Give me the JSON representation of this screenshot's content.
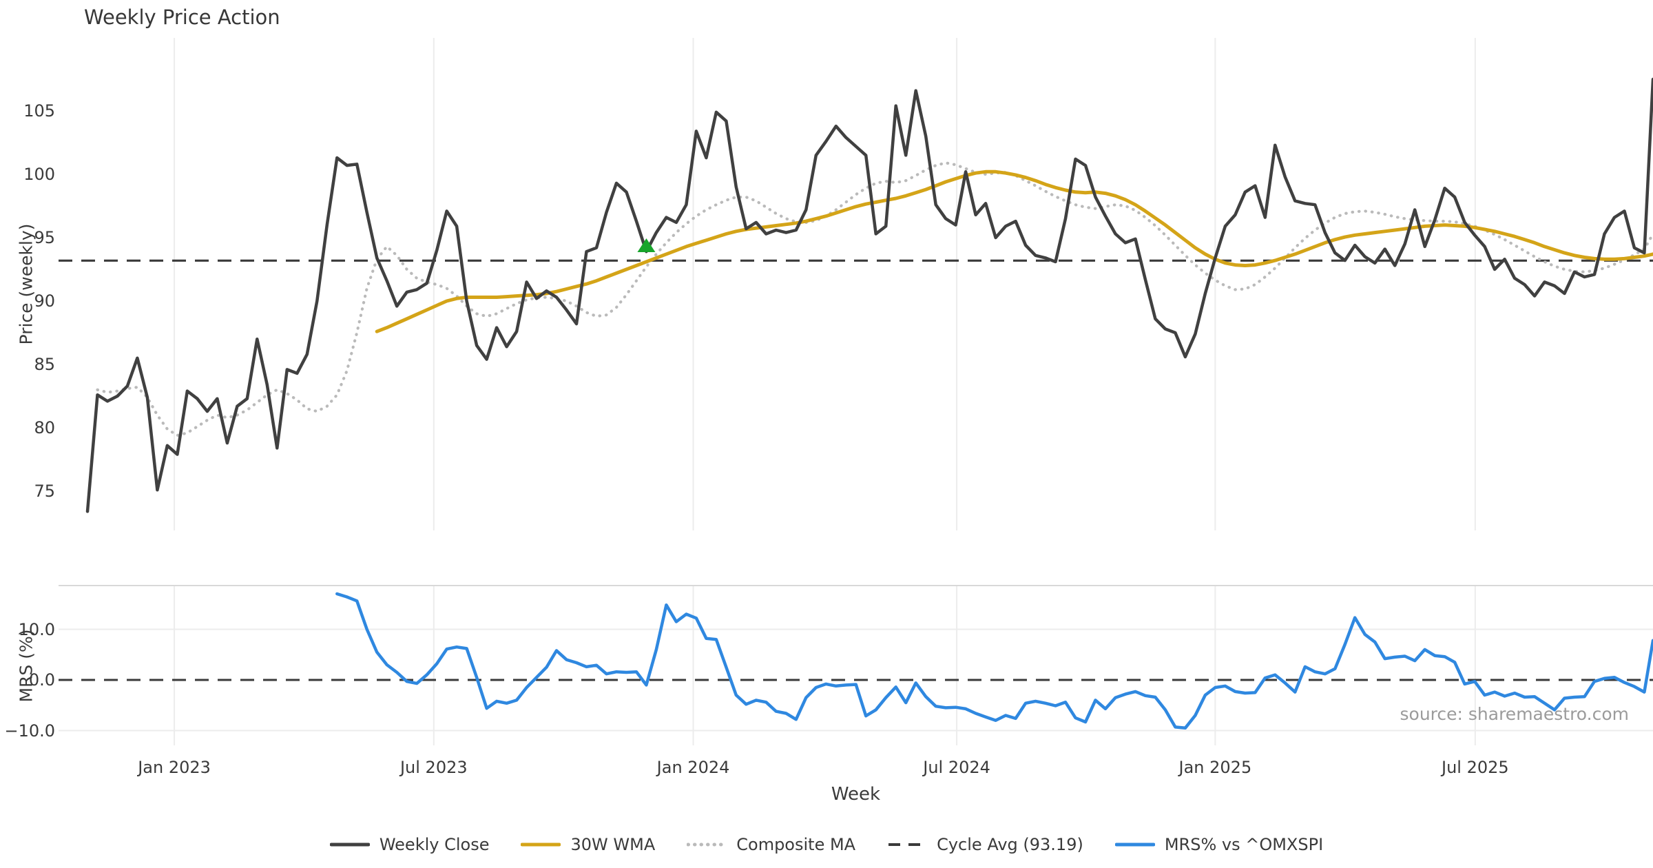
{
  "title": "Weekly Price Action",
  "source_note": "source: sharemaestro.com",
  "colors": {
    "close": "#404040",
    "wma": "#d4a418",
    "composite": "#bababa",
    "cycle": "#3a3a3a",
    "mrs": "#2f88e0",
    "marker": "#18a52c",
    "grid": "#ececec",
    "panel_border": "#d8d8d8",
    "text": "#3a3a3a",
    "muted": "#9b9b9b"
  },
  "axis": {
    "xlabel": "Week",
    "x_ticks": [
      {
        "label": "Jan 2023",
        "week": 8.7
      },
      {
        "label": "Jul 2023",
        "week": 34.7
      },
      {
        "label": "Jan 2024",
        "week": 60.7
      },
      {
        "label": "Jul 2024",
        "week": 87.1
      },
      {
        "label": "Jan 2025",
        "week": 113.0
      },
      {
        "label": "Jul 2025",
        "week": 139.05
      }
    ],
    "price_ylabel": "Price (weekly)",
    "price_yticks": [
      {
        "label": "105",
        "v": 105
      },
      {
        "label": "100",
        "v": 100
      },
      {
        "label": "95",
        "v": 95
      },
      {
        "label": "90",
        "v": 90
      },
      {
        "label": "85",
        "v": 85
      },
      {
        "label": "80",
        "v": 80
      },
      {
        "label": "75",
        "v": 75
      }
    ],
    "mrs_ylabel": "MRS (%)",
    "mrs_yticks": [
      {
        "label": "10.0",
        "v": 10
      },
      {
        "label": "0.0",
        "v": 0
      },
      {
        "label": "−10.0",
        "v": -10
      }
    ]
  },
  "legend": [
    {
      "label": "Weekly Close",
      "color": "#404040",
      "style": "solid"
    },
    {
      "label": "30W WMA",
      "color": "#d4a418",
      "style": "solid"
    },
    {
      "label": "Composite MA",
      "color": "#bababa",
      "style": "dotted"
    },
    {
      "label": "Cycle Avg (93.19)",
      "color": "#3a3a3a",
      "style": "dashed"
    },
    {
      "label": "MRS% vs ^OMXSPI",
      "color": "#2f88e0",
      "style": "solid"
    }
  ],
  "chart_data": [
    {
      "type": "line",
      "panel": "price",
      "title": "Weekly Price Action",
      "ylabel": "Price (weekly)",
      "ylim": [
        71.9,
        110.8
      ],
      "grid": "vertical-only",
      "cycle_avg": 93.19,
      "marker": {
        "shape": "triangle-up",
        "week": 56,
        "value": 94.35,
        "color": "#18a52c"
      },
      "series": [
        {
          "name": "Weekly Close",
          "start_week": 0,
          "values": [
            73.4,
            82.6,
            82.1,
            82.5,
            83.3,
            85.5,
            82.4,
            75.1,
            78.6,
            77.9,
            82.9,
            82.3,
            81.3,
            82.3,
            78.8,
            81.7,
            82.3,
            87.0,
            83.4,
            78.4,
            84.6,
            84.3,
            85.8,
            90.0,
            96.0,
            101.3,
            100.7,
            100.8,
            97.0,
            93.4,
            91.6,
            89.6,
            90.7,
            90.9,
            91.4,
            94.0,
            97.1,
            95.9,
            90.0,
            86.5,
            85.4,
            87.9,
            86.4,
            87.6,
            91.5,
            90.2,
            90.8,
            90.3,
            89.3,
            88.2,
            93.9,
            94.2,
            97.0,
            99.3,
            98.6,
            96.3,
            93.9,
            95.4,
            96.6,
            96.2,
            97.6,
            103.4,
            101.3,
            104.9,
            104.2,
            99.0,
            95.7,
            96.2,
            95.3,
            95.6,
            95.4,
            95.6,
            97.2,
            101.5,
            102.6,
            103.8,
            102.9,
            102.2,
            101.5,
            95.3,
            95.9,
            105.4,
            101.5,
            106.6,
            103.0,
            97.6,
            96.5,
            96.0,
            100.2,
            96.8,
            97.7,
            95.0,
            95.9,
            96.3,
            94.4,
            93.6,
            93.4,
            93.1,
            96.5,
            101.2,
            100.7,
            98.2,
            96.7,
            95.3,
            94.6,
            94.9,
            91.7,
            88.6,
            87.8,
            87.5,
            85.6,
            87.4,
            90.6,
            93.4,
            95.9,
            96.8,
            98.6,
            99.1,
            96.6,
            102.3,
            99.8,
            97.9,
            97.7,
            97.6,
            95.4,
            93.8,
            93.2,
            94.4,
            93.5,
            93.0,
            94.1,
            92.8,
            94.5,
            97.2,
            94.3,
            96.4,
            98.9,
            98.2,
            96.2,
            95.2,
            94.3,
            92.5,
            93.3,
            91.8,
            91.3,
            90.4,
            91.5,
            91.2,
            90.6,
            92.3,
            91.9,
            92.1,
            95.3,
            96.6,
            97.1,
            94.2,
            93.8,
            107.5
          ]
        },
        {
          "name": "30W WMA",
          "start_week": 29,
          "values": [
            87.6,
            87.9,
            88.25,
            88.6,
            88.95,
            89.3,
            89.65,
            90.0,
            90.2,
            90.3,
            90.3,
            90.3,
            90.3,
            90.35,
            90.4,
            90.45,
            90.5,
            90.6,
            90.75,
            90.95,
            91.15,
            91.35,
            91.6,
            91.9,
            92.2,
            92.5,
            92.8,
            93.1,
            93.4,
            93.7,
            94.0,
            94.3,
            94.55,
            94.8,
            95.05,
            95.3,
            95.5,
            95.65,
            95.75,
            95.85,
            95.95,
            96.05,
            96.15,
            96.3,
            96.5,
            96.7,
            96.95,
            97.2,
            97.45,
            97.65,
            97.8,
            97.95,
            98.1,
            98.3,
            98.55,
            98.8,
            99.1,
            99.4,
            99.65,
            99.9,
            100.1,
            100.2,
            100.2,
            100.1,
            99.95,
            99.75,
            99.5,
            99.2,
            98.95,
            98.75,
            98.6,
            98.55,
            98.6,
            98.5,
            98.3,
            98.0,
            97.6,
            97.1,
            96.55,
            96.0,
            95.4,
            94.8,
            94.2,
            93.7,
            93.3,
            93.0,
            92.85,
            92.8,
            92.85,
            93.0,
            93.2,
            93.45,
            93.7,
            94.0,
            94.3,
            94.6,
            94.85,
            95.05,
            95.2,
            95.3,
            95.4,
            95.5,
            95.6,
            95.7,
            95.8,
            95.9,
            95.95,
            96.0,
            95.95,
            95.9,
            95.8,
            95.65,
            95.5,
            95.3,
            95.1,
            94.85,
            94.6,
            94.3,
            94.05,
            93.8,
            93.6,
            93.45,
            93.35,
            93.3,
            93.3,
            93.35,
            93.45,
            93.55,
            93.7
          ]
        },
        {
          "name": "Composite MA",
          "start_week": 1,
          "values": [
            83.0,
            82.8,
            82.9,
            83.1,
            83.2,
            82.4,
            81.0,
            79.9,
            79.4,
            79.6,
            80.1,
            80.6,
            81.0,
            80.8,
            81.0,
            81.4,
            82.0,
            82.6,
            83.0,
            82.7,
            82.2,
            81.5,
            81.3,
            81.7,
            82.6,
            84.5,
            87.5,
            91.0,
            93.3,
            94.3,
            93.6,
            92.5,
            91.8,
            91.5,
            91.3,
            91.0,
            90.4,
            89.6,
            89.0,
            88.8,
            89.0,
            89.4,
            89.8,
            90.1,
            90.25,
            90.3,
            90.2,
            90.0,
            89.6,
            89.1,
            88.8,
            88.9,
            89.5,
            90.5,
            91.6,
            92.7,
            93.7,
            94.6,
            95.4,
            96.1,
            96.7,
            97.2,
            97.6,
            97.95,
            98.2,
            98.2,
            97.9,
            97.4,
            96.9,
            96.5,
            96.25,
            96.2,
            96.35,
            96.7,
            97.2,
            97.8,
            98.4,
            98.9,
            99.3,
            99.45,
            99.35,
            99.5,
            99.9,
            100.35,
            100.7,
            100.9,
            100.75,
            100.45,
            100.15,
            100.0,
            100.1,
            100.15,
            99.9,
            99.5,
            99.1,
            98.65,
            98.25,
            97.9,
            97.6,
            97.4,
            97.3,
            97.45,
            97.6,
            97.5,
            97.15,
            96.6,
            95.95,
            95.2,
            94.4,
            93.6,
            92.85,
            92.2,
            91.65,
            91.2,
            90.9,
            90.95,
            91.3,
            91.9,
            92.6,
            93.4,
            94.2,
            94.95,
            95.6,
            96.15,
            96.6,
            96.9,
            97.05,
            97.1,
            97.0,
            96.85,
            96.65,
            96.5,
            96.4,
            96.35,
            96.3,
            96.3,
            96.25,
            96.1,
            95.9,
            95.6,
            95.25,
            94.85,
            94.4,
            93.95,
            93.5,
            93.1,
            92.75,
            92.5,
            92.35,
            92.3,
            92.4,
            92.6,
            92.9,
            93.25,
            93.65,
            94.1,
            95.3
          ]
        }
      ]
    },
    {
      "type": "line",
      "panel": "mrs",
      "ylabel": "MRS (%)",
      "ylim": [
        -12.9,
        18.6
      ],
      "zero_line": 0,
      "series": [
        {
          "name": "MRS% vs ^OMXSPI",
          "start_week": 25,
          "values": [
            17.0,
            16.4,
            15.6,
            10.0,
            5.5,
            3.0,
            1.5,
            -0.3,
            -0.7,
            1.0,
            3.2,
            6.1,
            6.5,
            6.2,
            0.5,
            -5.6,
            -4.2,
            -4.6,
            -4.0,
            -1.5,
            0.5,
            2.5,
            5.8,
            4.0,
            3.4,
            2.6,
            2.9,
            1.2,
            1.6,
            1.5,
            1.6,
            -1.0,
            6.0,
            14.8,
            11.5,
            13.0,
            12.2,
            8.2,
            8.0,
            2.5,
            -3.0,
            -4.8,
            -4.0,
            -4.4,
            -6.2,
            -6.6,
            -7.8,
            -3.5,
            -1.5,
            -0.8,
            -1.2,
            -1.0,
            -0.9,
            -7.1,
            -5.9,
            -3.5,
            -1.4,
            -4.5,
            -0.6,
            -3.3,
            -5.2,
            -5.5,
            -5.4,
            -5.7,
            -6.6,
            -7.3,
            -8.0,
            -7.0,
            -7.6,
            -4.6,
            -4.2,
            -4.6,
            -5.1,
            -4.4,
            -7.5,
            -8.3,
            -4.0,
            -5.7,
            -3.5,
            -2.8,
            -2.3,
            -3.1,
            -3.4,
            -5.9,
            -9.3,
            -9.5,
            -7.0,
            -3.0,
            -1.5,
            -1.2,
            -2.3,
            -2.6,
            -2.5,
            0.4,
            1.0,
            -0.6,
            -2.4,
            2.6,
            1.6,
            1.2,
            2.2,
            7.0,
            12.3,
            9.0,
            7.5,
            4.2,
            4.5,
            4.7,
            3.8,
            6.0,
            4.8,
            4.6,
            3.5,
            -0.8,
            -0.3,
            -3.0,
            -2.4,
            -3.2,
            -2.6,
            -3.4,
            -3.3,
            -4.6,
            -5.9,
            -3.6,
            -3.4,
            -3.3,
            -0.3,
            0.3,
            0.5,
            -0.5,
            -1.3,
            -2.4,
            7.8
          ]
        }
      ]
    }
  ]
}
